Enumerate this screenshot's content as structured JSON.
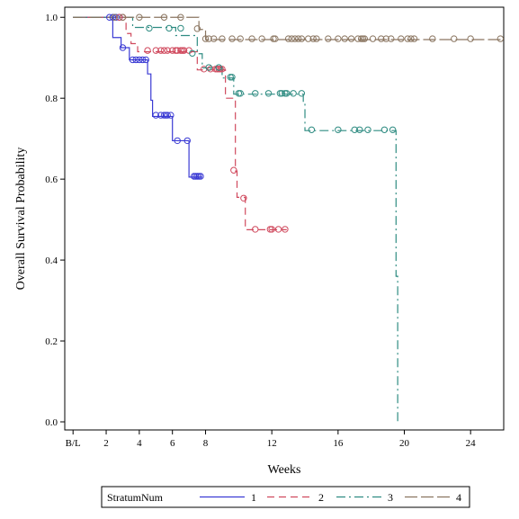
{
  "chart_data": {
    "type": "line",
    "step": true,
    "xlabel": "Weeks",
    "ylabel": "Overall Survival Probability",
    "xlim": [
      -0.5,
      26
    ],
    "ylim": [
      -0.02,
      1.025
    ],
    "xticks": [
      {
        "value": 0,
        "label": "B/L"
      },
      {
        "value": 2,
        "label": "2"
      },
      {
        "value": 4,
        "label": "4"
      },
      {
        "value": 6,
        "label": "6"
      },
      {
        "value": 8,
        "label": "8"
      },
      {
        "value": 12,
        "label": "12"
      },
      {
        "value": 16,
        "label": "16"
      },
      {
        "value": 20,
        "label": "20"
      },
      {
        "value": 24,
        "label": "24"
      }
    ],
    "yticks": [
      {
        "value": 0.0,
        "label": "0.0"
      },
      {
        "value": 0.2,
        "label": "0.2"
      },
      {
        "value": 0.4,
        "label": "0.4"
      },
      {
        "value": 0.6,
        "label": "0.6"
      },
      {
        "value": 0.8,
        "label": "0.8"
      },
      {
        "value": 1.0,
        "label": "1.0"
      }
    ],
    "legend": {
      "title": "StratumNum",
      "position": "bottom"
    },
    "series": [
      {
        "name": "1",
        "color": "#3b3bd4",
        "dash": "",
        "steps": [
          [
            0,
            1.0
          ],
          [
            2.4,
            0.95
          ],
          [
            2.9,
            0.925
          ],
          [
            3.4,
            0.895
          ],
          [
            4.5,
            0.86
          ],
          [
            4.7,
            0.795
          ],
          [
            4.8,
            0.755
          ],
          [
            6.0,
            0.695
          ],
          [
            7.0,
            0.605
          ],
          [
            7.8,
            0.605
          ]
        ],
        "censored": [
          [
            2.2,
            1.0
          ],
          [
            2.4,
            1.0
          ],
          [
            2.6,
            1.0
          ],
          [
            2.8,
            1.0
          ],
          [
            3.0,
            0.925
          ],
          [
            3.6,
            0.895
          ],
          [
            3.8,
            0.895
          ],
          [
            4.0,
            0.895
          ],
          [
            4.2,
            0.895
          ],
          [
            4.4,
            0.895
          ],
          [
            5.0,
            0.758
          ],
          [
            5.3,
            0.758
          ],
          [
            5.5,
            0.758
          ],
          [
            5.6,
            0.758
          ],
          [
            5.7,
            0.758
          ],
          [
            5.9,
            0.758
          ],
          [
            6.3,
            0.695
          ],
          [
            6.9,
            0.695
          ],
          [
            7.3,
            0.607
          ],
          [
            7.4,
            0.607
          ],
          [
            7.5,
            0.607
          ],
          [
            7.6,
            0.607
          ],
          [
            7.7,
            0.607
          ]
        ]
      },
      {
        "name": "2",
        "color": "#d04a5e",
        "dash": "8,5",
        "steps": [
          [
            0,
            1.0
          ],
          [
            3.2,
            0.96
          ],
          [
            3.5,
            0.935
          ],
          [
            3.9,
            0.915
          ],
          [
            7.5,
            0.87
          ],
          [
            9.2,
            0.8
          ],
          [
            9.8,
            0.62
          ],
          [
            9.9,
            0.555
          ],
          [
            10.4,
            0.475
          ],
          [
            12.9,
            0.475
          ]
        ],
        "censored": [
          [
            2.8,
            1.0
          ],
          [
            3.0,
            1.0
          ],
          [
            4.5,
            0.918
          ],
          [
            5.0,
            0.918
          ],
          [
            5.3,
            0.918
          ],
          [
            5.5,
            0.918
          ],
          [
            5.7,
            0.918
          ],
          [
            6.0,
            0.918
          ],
          [
            6.2,
            0.918
          ],
          [
            6.3,
            0.918
          ],
          [
            6.5,
            0.918
          ],
          [
            6.6,
            0.918
          ],
          [
            6.7,
            0.918
          ],
          [
            7.0,
            0.918
          ],
          [
            7.9,
            0.872
          ],
          [
            8.3,
            0.872
          ],
          [
            8.6,
            0.872
          ],
          [
            8.7,
            0.872
          ],
          [
            8.8,
            0.872
          ],
          [
            8.9,
            0.872
          ],
          [
            9.0,
            0.872
          ],
          [
            9.7,
            0.622
          ],
          [
            10.3,
            0.553
          ],
          [
            11.0,
            0.476
          ],
          [
            11.9,
            0.476
          ],
          [
            12.0,
            0.476
          ],
          [
            12.4,
            0.476
          ],
          [
            12.8,
            0.476
          ]
        ]
      },
      {
        "name": "3",
        "color": "#2f8c82",
        "dash": "10,4,2,4",
        "steps": [
          [
            0,
            1.0
          ],
          [
            3.6,
            0.975
          ],
          [
            6.2,
            0.955
          ],
          [
            7.5,
            0.91
          ],
          [
            7.8,
            0.875
          ],
          [
            9.0,
            0.85
          ],
          [
            9.7,
            0.81
          ],
          [
            13.9,
            0.79
          ],
          [
            14.0,
            0.72
          ],
          [
            19.5,
            0.36
          ],
          [
            19.6,
            0.0
          ]
        ],
        "censored": [
          [
            4.6,
            0.973
          ],
          [
            5.8,
            0.973
          ],
          [
            6.5,
            0.973
          ],
          [
            7.2,
            0.911
          ],
          [
            8.2,
            0.876
          ],
          [
            8.8,
            0.876
          ],
          [
            9.5,
            0.852
          ],
          [
            9.6,
            0.852
          ],
          [
            10.0,
            0.812
          ],
          [
            10.1,
            0.812
          ],
          [
            11.0,
            0.812
          ],
          [
            11.8,
            0.812
          ],
          [
            12.5,
            0.812
          ],
          [
            12.6,
            0.812
          ],
          [
            12.8,
            0.812
          ],
          [
            12.9,
            0.812
          ],
          [
            13.3,
            0.812
          ],
          [
            13.8,
            0.812
          ],
          [
            14.4,
            0.722
          ],
          [
            16.0,
            0.722
          ],
          [
            17.0,
            0.722
          ],
          [
            17.3,
            0.722
          ],
          [
            17.8,
            0.722
          ],
          [
            18.8,
            0.722
          ],
          [
            19.3,
            0.722
          ]
        ]
      },
      {
        "name": "4",
        "color": "#8a7560",
        "dash": "14,4",
        "steps": [
          [
            0,
            1.0
          ],
          [
            7.6,
            0.97
          ],
          [
            8.0,
            0.945
          ],
          [
            26,
            0.945
          ]
        ],
        "censored": [
          [
            2.5,
            1.0
          ],
          [
            3.0,
            1.0
          ],
          [
            4.0,
            1.0
          ],
          [
            5.5,
            1.0
          ],
          [
            6.5,
            1.0
          ],
          [
            7.5,
            0.972
          ],
          [
            8.0,
            0.947
          ],
          [
            8.2,
            0.947
          ],
          [
            8.5,
            0.947
          ],
          [
            9.0,
            0.947
          ],
          [
            9.6,
            0.947
          ],
          [
            10.1,
            0.947
          ],
          [
            10.8,
            0.947
          ],
          [
            11.4,
            0.947
          ],
          [
            12.1,
            0.947
          ],
          [
            12.2,
            0.947
          ],
          [
            13.0,
            0.947
          ],
          [
            13.2,
            0.947
          ],
          [
            13.4,
            0.947
          ],
          [
            13.6,
            0.947
          ],
          [
            13.8,
            0.947
          ],
          [
            14.2,
            0.947
          ],
          [
            14.5,
            0.947
          ],
          [
            14.7,
            0.947
          ],
          [
            15.4,
            0.947
          ],
          [
            16.0,
            0.947
          ],
          [
            16.4,
            0.947
          ],
          [
            16.8,
            0.947
          ],
          [
            17.2,
            0.947
          ],
          [
            17.4,
            0.947
          ],
          [
            17.5,
            0.947
          ],
          [
            17.6,
            0.947
          ],
          [
            18.1,
            0.947
          ],
          [
            18.6,
            0.947
          ],
          [
            18.9,
            0.947
          ],
          [
            19.2,
            0.947
          ],
          [
            19.8,
            0.947
          ],
          [
            20.2,
            0.947
          ],
          [
            20.4,
            0.947
          ],
          [
            20.6,
            0.947
          ],
          [
            21.7,
            0.947
          ],
          [
            23.0,
            0.947
          ],
          [
            24.0,
            0.947
          ],
          [
            25.8,
            0.947
          ]
        ]
      }
    ]
  }
}
